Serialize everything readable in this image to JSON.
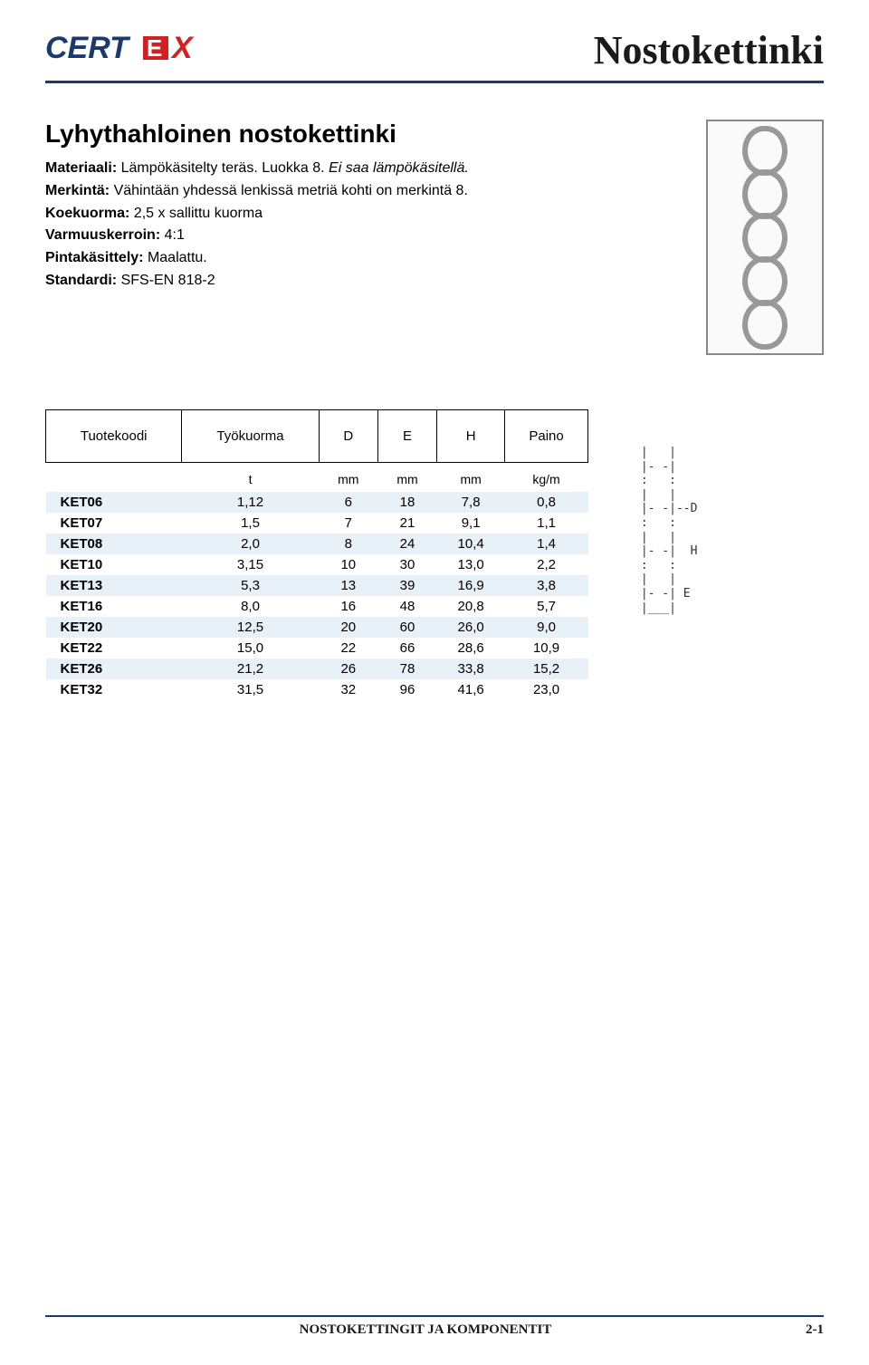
{
  "logo": {
    "text_cert": "CERT",
    "text_x": "X",
    "cert_color": "#1a3a6e",
    "x_color": "#d32020",
    "e_fill": "#d32020"
  },
  "header": {
    "title": "Nostokettinki"
  },
  "section": {
    "subtitle": "Lyhythahloinen nostokettinki",
    "props": [
      {
        "label": "Materiaali:",
        "value": "Lämpökäsitelty teräs. Luokka 8.",
        "italic_suffix": "Ei saa lämpökäsitellä."
      },
      {
        "label": "Merkintä:",
        "value": "Vähintään yhdessä lenkissä metriä kohti on merkintä 8."
      },
      {
        "label": "Koekuorma:",
        "value": "2,5 x sallittu kuorma"
      },
      {
        "label": "Varmuuskerroin:",
        "value": "4:1"
      },
      {
        "label": "Pintakäsittely:",
        "value": "Maalattu."
      },
      {
        "label": "Standardi:",
        "value": "SFS-EN 818-2"
      }
    ]
  },
  "table": {
    "headers": [
      "Tuotekoodi",
      "Työkuorma",
      "D",
      "E",
      "H",
      "Paino"
    ],
    "units": [
      "",
      "t",
      "mm",
      "mm",
      "mm",
      "kg/m"
    ],
    "rows": [
      [
        "KET06",
        "1,12",
        "6",
        "18",
        "7,8",
        "0,8"
      ],
      [
        "KET07",
        "1,5",
        "7",
        "21",
        "9,1",
        "1,1"
      ],
      [
        "KET08",
        "2,0",
        "8",
        "24",
        "10,4",
        "1,4"
      ],
      [
        "KET10",
        "3,15",
        "10",
        "30",
        "13,0",
        "2,2"
      ],
      [
        "KET13",
        "5,3",
        "13",
        "39",
        "16,9",
        "3,8"
      ],
      [
        "KET16",
        "8,0",
        "16",
        "48",
        "20,8",
        "5,7"
      ],
      [
        "KET20",
        "12,5",
        "20",
        "60",
        "26,0",
        "9,0"
      ],
      [
        "KET22",
        "15,0",
        "22",
        "66",
        "28,6",
        "10,9"
      ],
      [
        "KET26",
        "21,2",
        "26",
        "78",
        "33,8",
        "15,2"
      ],
      [
        "KET32",
        "31,5",
        "32",
        "96",
        "41,6",
        "23,0"
      ]
    ],
    "even_row_bg": "#e8f0f8"
  },
  "diagram_ascii": " |   |\n |- -|\n :   :\n |   |  \n |- -|--D\n :   :\n |   |\n |- -|  H\n :   :\n |   |\n |- -| E\n |___|",
  "footer": {
    "center": "NOSTOKETTINGIT JA KOMPONENTIT",
    "page": "2-1"
  }
}
